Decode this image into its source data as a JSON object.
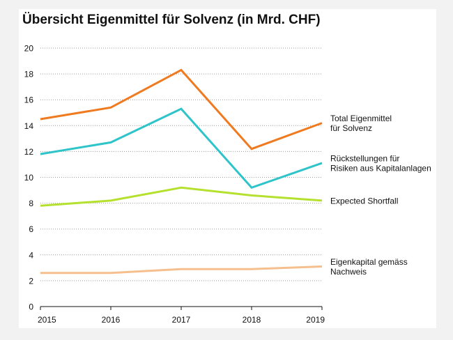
{
  "chart_data": {
    "type": "line",
    "title": "Übersicht Eigenmittel für Solvenz (in Mrd. CHF)",
    "xlabel": "",
    "ylabel": "",
    "x": [
      "2015",
      "2016",
      "2017",
      "2018",
      "2019"
    ],
    "ylim": [
      0,
      20
    ],
    "yticks": [
      "0",
      "2",
      "4",
      "6",
      "8",
      "10",
      "12",
      "14",
      "16",
      "18",
      "20"
    ],
    "grid": true,
    "legend": "right, inline at line ends",
    "series": [
      {
        "name": "Total Eigenmittel für Solvenz",
        "label_lines": [
          "Total Eigenmittel",
          "für Solvenz"
        ],
        "color": "#f07a1f",
        "values": [
          14.5,
          15.4,
          18.3,
          12.2,
          14.2
        ]
      },
      {
        "name": "Rückstellungen für Risiken aus Kapitalanlagen",
        "label_lines": [
          "Rückstellungen für",
          "Risiken aus Kapitalanlagen"
        ],
        "color": "#2ec4c9",
        "values": [
          11.8,
          12.7,
          15.3,
          9.2,
          11.1
        ]
      },
      {
        "name": "Expected Shortfall",
        "label_lines": [
          "Expected Shortfall"
        ],
        "color": "#b5e12e",
        "values": [
          7.8,
          8.2,
          9.2,
          8.6,
          8.2
        ]
      },
      {
        "name": "Eigenkapital gemäss Nachweis",
        "label_lines": [
          "Eigenkapital gemäss",
          "Nachweis"
        ],
        "color": "#f5bf8e",
        "values": [
          2.6,
          2.6,
          2.9,
          2.9,
          3.1
        ]
      }
    ]
  }
}
